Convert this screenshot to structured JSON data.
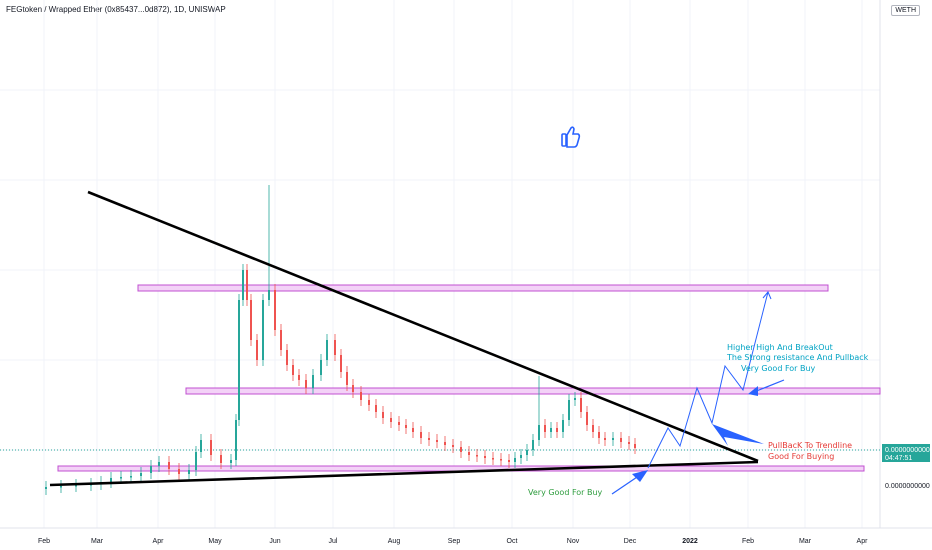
{
  "header": {
    "title": "FEGtoken / Wrapped Ether (0x85437...0d872), 1D, UNISWAP",
    "currency": "WETH"
  },
  "price_scale": {
    "last_price": "0.0000000000",
    "countdown": "04:47:51",
    "base_label": "0.0000000000"
  },
  "colors": {
    "up": "#26a69a",
    "down": "#ef5350",
    "zone_fill": "#f3d2f7",
    "zone_stroke": "#c050d0",
    "trendline": "#000000",
    "projection": "#2962ff",
    "last_price_bg": "#26a69a",
    "anno_blue": "#00a3c4",
    "anno_red": "#e53935",
    "anno_green": "#2e9c3e"
  },
  "annotations": {
    "breakout_1": "Higher High And BreakOut",
    "breakout_2": "The Strong resistance And Pullback",
    "breakout_3": "Very Good For Buy",
    "pullback_1": "PullBacK To Trendline",
    "pullback_2": "Good For Buying",
    "bottom": "Very Good For Buy"
  },
  "icons": {
    "thumbs": "thumbs-up-icon"
  },
  "chart_data": {
    "type": "candlestick",
    "title": "FEGtoken / Wrapped Ether (0x85437...0d872), 1D, UNISWAP",
    "x_tick_labels": [
      "Feb",
      "Mar",
      "Apr",
      "May",
      "Jun",
      "Jul",
      "Aug",
      "Sep",
      "Oct",
      "Nov",
      "Dec",
      "2022",
      "Feb",
      "Mar",
      "Apr"
    ],
    "y_axis_labels": [
      "0.0000000000"
    ],
    "grid": true,
    "legend": "none"
  }
}
